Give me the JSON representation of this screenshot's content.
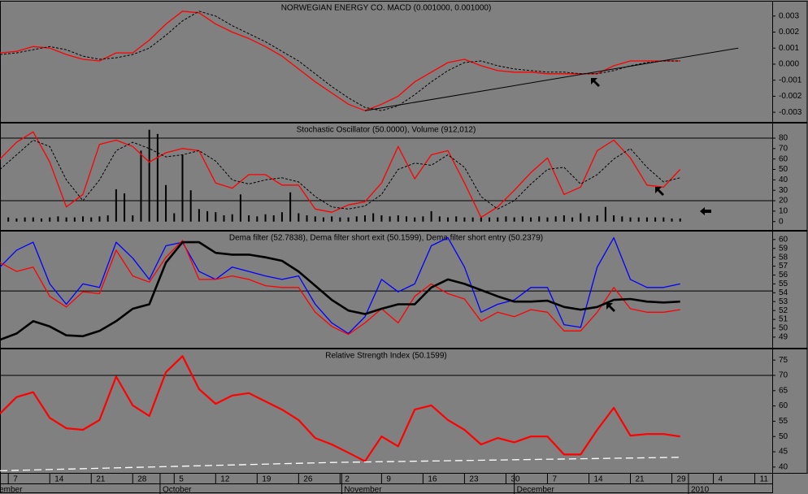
{
  "x_axis": {
    "xlim": [
      0,
      93.1
    ],
    "x": [
      0,
      2,
      4,
      6,
      8,
      10,
      12,
      14,
      16,
      18,
      20,
      22,
      24,
      26,
      28,
      30,
      32,
      34,
      36,
      38,
      40,
      42,
      44,
      46,
      48,
      50,
      52,
      54,
      56,
      58,
      60,
      62,
      64,
      66,
      68,
      70,
      72,
      74,
      76,
      78,
      80,
      82
    ],
    "xticks": [
      {
        "value": 1,
        "label": "7"
      },
      {
        "value": 6,
        "label": "14"
      },
      {
        "value": 11,
        "label": "21"
      },
      {
        "value": 16,
        "label": "28"
      },
      {
        "value": 21,
        "label": "5"
      },
      {
        "value": 26,
        "label": "12"
      },
      {
        "value": 31,
        "label": "19"
      },
      {
        "value": 36,
        "label": "26"
      },
      {
        "value": 41,
        "label": "2"
      },
      {
        "value": 46,
        "label": "9"
      },
      {
        "value": 51,
        "label": "16"
      },
      {
        "value": 56,
        "label": "23"
      },
      {
        "value": 61,
        "label": "30"
      },
      {
        "value": 66,
        "label": "7"
      },
      {
        "value": 71,
        "label": "14"
      },
      {
        "value": 76,
        "label": "21"
      },
      {
        "value": 81,
        "label": "29"
      },
      {
        "value": 86,
        "label": "4"
      },
      {
        "value": 91,
        "label": "11"
      }
    ],
    "month_ticks": [
      {
        "value": -2.4,
        "label": "September"
      },
      {
        "value": 19.3,
        "label": "October"
      },
      {
        "value": 41.2,
        "label": "November"
      },
      {
        "value": 62,
        "label": "December"
      },
      {
        "value": 83,
        "label": "2010"
      }
    ]
  },
  "chart_data": [
    {
      "type": "line",
      "title": "NORWEGIAN ENERGY CO. MACD (0.001000, 0.001000)",
      "ylim": [
        -0.0036,
        0.0039
      ],
      "yticks": [
        0.003,
        0.002,
        0.001,
        {
          "value": 0,
          "label": "0.000"
        },
        -0.001,
        -0.002,
        -0.003
      ],
      "series": [
        {
          "style": "line",
          "color": "#ff0000",
          "values": [
            0.0007,
            0.0008,
            0.0011,
            0.001,
            0.0006,
            0.0003,
            0.0002,
            0.0007,
            0.0007,
            0.0015,
            0.0025,
            0.0033,
            0.0032,
            0.0025,
            0.002,
            0.0016,
            0.0011,
            0.0005,
            -0.0003,
            -0.0011,
            -0.0018,
            -0.0025,
            -0.0029,
            -0.0025,
            -0.002,
            -0.0011,
            -0.0005,
            0.0001,
            0.0003,
            -0.0001,
            -0.0004,
            -0.0005,
            -0.0005,
            -0.0006,
            -0.0006,
            -0.0006,
            -0.0006,
            -0.0001,
            0.0002,
            0.0002,
            0.0002,
            0.0002
          ]
        },
        {
          "style": "dashed",
          "color": "#000000",
          "values": [
            0.0006,
            0.0007,
            0.0009,
            0.0011,
            0.0009,
            0.0005,
            0.0003,
            0.0004,
            0.0006,
            0.001,
            0.0018,
            0.0027,
            0.0033,
            0.003,
            0.0024,
            0.0019,
            0.0014,
            0.0008,
            0.0002,
            -0.0006,
            -0.0014,
            -0.0021,
            -0.0027,
            -0.0029,
            -0.0026,
            -0.0019,
            -0.0011,
            -0.0004,
            0.0001,
            0.0002,
            -0.0001,
            -0.0003,
            -0.0004,
            -0.0005,
            -0.0005,
            -0.0006,
            -0.0006,
            -0.0004,
            -0.0001,
            0.0001,
            0.0002,
            0.0002
          ]
        },
        {
          "style": "thin",
          "color": "#000000",
          "x": [
            44,
            89
          ],
          "values": [
            -0.0029,
            0.001
          ]
        }
      ]
    },
    {
      "type": "line",
      "title": "Stochastic Oscillator (50.0000), Volume (912,012)",
      "ylim": [
        -8,
        94
      ],
      "yticks": [
        80,
        70,
        60,
        50,
        40,
        30,
        20,
        10,
        0
      ],
      "ref_lines": [
        80,
        20
      ],
      "series": [
        {
          "style": "bar",
          "color": "#000000",
          "x": [
            0,
            1,
            2,
            3,
            4,
            5,
            6,
            7,
            8,
            9,
            10,
            11,
            12,
            13,
            14,
            15,
            16,
            17,
            18,
            19,
            20,
            21,
            22,
            23,
            24,
            25,
            26,
            27,
            28,
            29,
            30,
            31,
            32,
            33,
            34,
            35,
            36,
            37,
            38,
            39,
            40,
            41,
            42,
            43,
            44,
            45,
            46,
            47,
            48,
            49,
            50,
            51,
            52,
            53,
            54,
            55,
            56,
            57,
            58,
            59,
            60,
            61,
            62,
            63,
            64,
            65,
            66,
            67,
            68,
            69,
            70,
            71,
            72,
            73,
            74,
            75,
            76,
            77,
            78,
            79,
            80,
            81,
            82
          ],
          "values": [
            3,
            4,
            3,
            4,
            4,
            3,
            4,
            5,
            4,
            4,
            5,
            4,
            5,
            6,
            31,
            27,
            6,
            68,
            88,
            84,
            35,
            8,
            64,
            30,
            12,
            10,
            9,
            6,
            7,
            26,
            6,
            5,
            7,
            6,
            9,
            28,
            8,
            6,
            5,
            4,
            5,
            4,
            4,
            5,
            6,
            8,
            6,
            5,
            6,
            5,
            4,
            5,
            10,
            5,
            4,
            5,
            4,
            4,
            5,
            4,
            4,
            5,
            4,
            5,
            4,
            5,
            4,
            5,
            6,
            4,
            8,
            5,
            6,
            14,
            6,
            5,
            4,
            4,
            4,
            4,
            4,
            3,
            3
          ]
        },
        {
          "style": "line",
          "color": "#ff0000",
          "values": [
            60,
            76,
            86,
            57,
            14,
            26,
            74,
            78,
            72,
            57,
            66,
            70,
            68,
            37,
            32,
            45,
            45,
            35,
            35,
            12,
            9,
            16,
            19,
            37,
            72,
            41,
            64,
            68,
            37,
            4,
            14,
            30,
            47,
            61,
            26,
            33,
            68,
            78,
            61,
            35,
            33,
            50
          ]
        },
        {
          "style": "dashed",
          "color": "#000000",
          "values": [
            50,
            64,
            78,
            72,
            40,
            20,
            40,
            68,
            76,
            70,
            62,
            64,
            68,
            58,
            40,
            36,
            40,
            42,
            38,
            24,
            14,
            12,
            15,
            26,
            50,
            56,
            54,
            64,
            52,
            24,
            12,
            20,
            36,
            50,
            52,
            36,
            45,
            60,
            70,
            52,
            38,
            42
          ]
        }
      ]
    },
    {
      "type": "line",
      "title": "Dema filter (52.7838), Dema filter short exit (50.1599), Dema filter short entry (50.2379)",
      "ylim": [
        47.8,
        60.9
      ],
      "yticks": [
        60,
        59,
        58,
        57,
        56,
        55,
        54,
        53,
        52,
        51,
        50,
        49
      ],
      "ref_lines": [
        54.2
      ],
      "series": [
        {
          "style": "line",
          "color": "#0000ff",
          "values": [
            56.9,
            58.8,
            59.7,
            55.0,
            52.7,
            55.0,
            54.6,
            59.7,
            57.9,
            55.5,
            59.3,
            59.7,
            56.4,
            55.5,
            56.9,
            56.4,
            55.9,
            55.5,
            55.9,
            52.7,
            50.6,
            49.4,
            51.3,
            55.5,
            54.1,
            55.0,
            59.3,
            60.2,
            56.9,
            51.8,
            52.7,
            53.2,
            54.6,
            54.6,
            50.4,
            50.1,
            56.9,
            60.2,
            55.5,
            54.6,
            54.6,
            55.0
          ]
        },
        {
          "style": "line",
          "color": "#ff0000",
          "values": [
            57.4,
            56.4,
            56.9,
            53.6,
            52.4,
            54.1,
            53.9,
            58.8,
            55.9,
            55.2,
            58.0,
            59.9,
            55.5,
            55.5,
            55.9,
            55.5,
            54.8,
            54.6,
            54.6,
            51.8,
            50.2,
            49.3,
            50.6,
            52.2,
            50.6,
            53.6,
            55.0,
            53.9,
            53.3,
            50.8,
            51.8,
            51.3,
            52.1,
            51.8,
            49.7,
            49.7,
            51.8,
            54.6,
            52.2,
            51.8,
            51.8,
            52.1
          ]
        },
        {
          "style": "thick",
          "color": "#000000",
          "values": [
            48.7,
            49.4,
            50.8,
            50.2,
            49.2,
            49.1,
            49.7,
            50.8,
            52.2,
            52.7,
            57.4,
            59.7,
            59.7,
            58.5,
            58.3,
            58.3,
            58.0,
            57.6,
            56.4,
            54.8,
            53.2,
            52.0,
            51.6,
            52.2,
            52.7,
            52.7,
            54.6,
            55.5,
            55.0,
            54.3,
            53.6,
            53.0,
            53.0,
            53.1,
            52.4,
            52.1,
            52.4,
            53.2,
            53.3,
            53.0,
            52.9,
            53.0
          ]
        }
      ]
    },
    {
      "type": "line",
      "title": "Relative Strength Index (50.1599)",
      "ylim": [
        38.1,
        78.5
      ],
      "yticks": [
        75,
        70,
        65,
        60,
        55,
        50,
        45,
        40
      ],
      "ref_lines": [
        70
      ],
      "series": [
        {
          "style": "thick-red",
          "color": "#ff0000",
          "values": [
            57.5,
            62.9,
            64.5,
            56.1,
            52.7,
            52.2,
            55.4,
            69.6,
            60.2,
            56.7,
            71,
            76.3,
            65.5,
            60.7,
            63.4,
            64.2,
            61.5,
            58.8,
            55.4,
            49.5,
            47.4,
            44.7,
            41.9,
            50,
            46.8,
            58.8,
            60.2,
            55.4,
            52.2,
            47.4,
            49.5,
            48.1,
            50,
            50,
            44.1,
            44.1,
            52.2,
            59.4,
            50.3,
            50.8,
            50.8,
            50
          ]
        },
        {
          "style": "long-dash",
          "color": "#ffffff",
          "x": [
            0,
            40,
            82
          ],
          "values": [
            38.8,
            41.5,
            43.2
          ]
        }
      ]
    }
  ]
}
